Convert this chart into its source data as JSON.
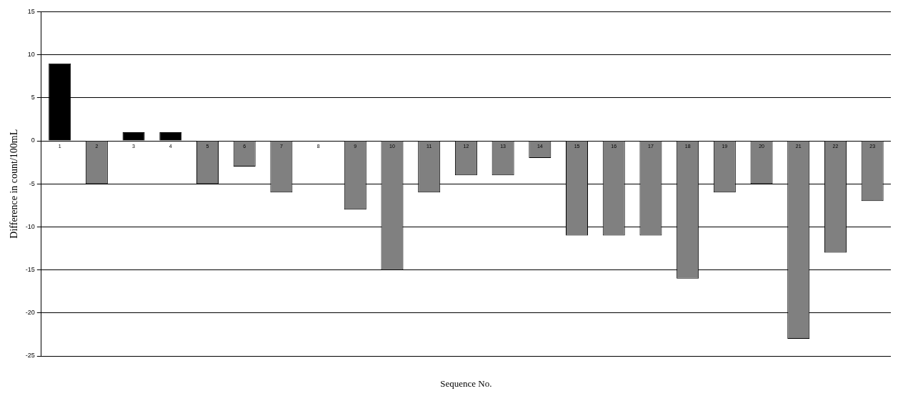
{
  "chart_data": {
    "type": "bar",
    "xlabel": "Sequence No.",
    "ylabel": "Difference in count/100mL",
    "categories": [
      "1",
      "2",
      "3",
      "4",
      "5",
      "6",
      "7",
      "8",
      "9",
      "10",
      "11",
      "12",
      "13",
      "14",
      "15",
      "16",
      "17",
      "18",
      "19",
      "20",
      "21",
      "22",
      "23"
    ],
    "values": [
      9,
      -5,
      1,
      1,
      -5,
      -3,
      -6,
      0,
      -8,
      -15,
      -6,
      -4,
      -4,
      -2,
      -11,
      -11,
      -11,
      -16,
      -6,
      -5,
      -23,
      -13,
      -7
    ],
    "colors": [
      "#000000",
      "#808080",
      "#000000",
      "#000000",
      "#808080",
      "#808080",
      "#808080",
      "#808080",
      "#808080",
      "#808080",
      "#808080",
      "#808080",
      "#808080",
      "#808080",
      "#808080",
      "#808080",
      "#808080",
      "#808080",
      "#808080",
      "#808080",
      "#808080",
      "#808080",
      "#808080"
    ],
    "ylim": [
      -25,
      15
    ],
    "yticks": [
      -25,
      -20,
      -15,
      -10,
      -5,
      0,
      5,
      10,
      15
    ],
    "grid": "y",
    "legend": false
  }
}
